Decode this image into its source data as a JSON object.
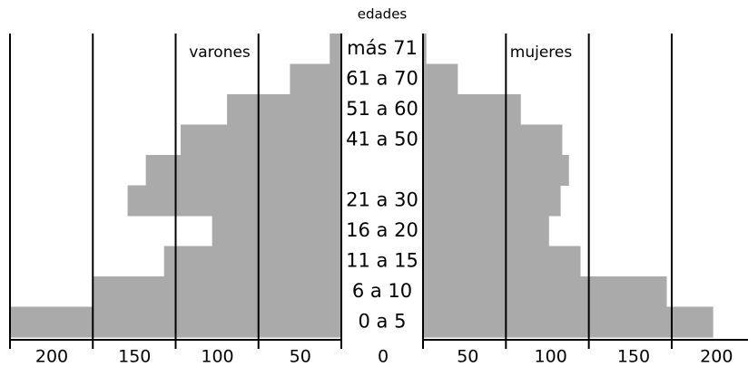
{
  "chart_data": {
    "type": "pyramid",
    "title": "edades",
    "categories": [
      "más 71",
      "61 a 70",
      "51 a 60",
      "41 a 50",
      null,
      "21 a 30",
      "16 a 20",
      "11 a 15",
      "6 a 10",
      "0 a 5"
    ],
    "series": [
      {
        "name": "varones",
        "color": "#aaaaaa",
        "values": [
          7,
          31,
          69,
          97,
          118,
          129,
          78,
          107,
          150,
          200
        ]
      },
      {
        "name": "mujeres",
        "color": "#aaaaaa",
        "values": [
          2,
          21,
          59,
          84,
          88,
          83,
          76,
          95,
          147,
          175
        ]
      }
    ],
    "xlim": [
      0,
      200
    ],
    "xticks": [
      0,
      50,
      100,
      150,
      200
    ],
    "x2lim": [
      0,
      196
    ],
    "x2ticks": [
      50,
      100,
      150,
      200
    ]
  }
}
